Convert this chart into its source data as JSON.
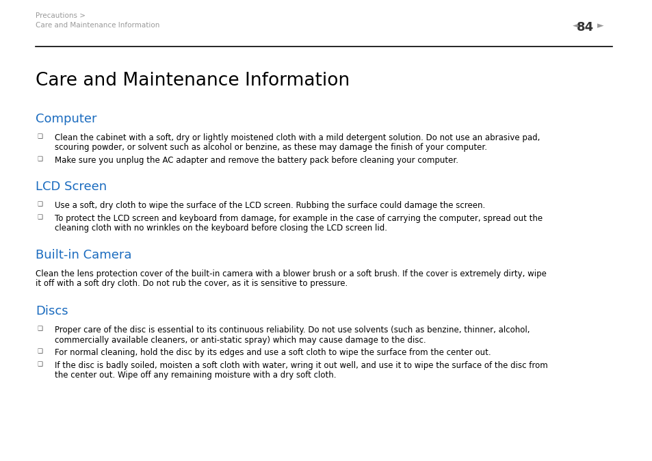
{
  "bg_color": "#ffffff",
  "header_breadcrumb1": "Precautions >",
  "header_breadcrumb2": "Care and Maintenance Information",
  "header_page_num": "84",
  "title": "Care and Maintenance Information",
  "section_color": "#1a6bbf",
  "text_color": "#000000",
  "header_color": "#999999",
  "page_num_color": "#333333",
  "arrow_color": "#999999",
  "sections": [
    {
      "heading": "Computer",
      "bullets": [
        [
          "Clean the cabinet with a soft, dry or lightly moistened cloth with a mild detergent solution. Do not use an abrasive pad,",
          "scouring powder, or solvent such as alcohol or benzine, as these may damage the finish of your computer."
        ],
        [
          "Make sure you unplug the AC adapter and remove the battery pack before cleaning your computer."
        ]
      ],
      "paragraph": null
    },
    {
      "heading": "LCD Screen",
      "bullets": [
        [
          "Use a soft, dry cloth to wipe the surface of the LCD screen. Rubbing the surface could damage the screen."
        ],
        [
          "To protect the LCD screen and keyboard from damage, for example in the case of carrying the computer, spread out the",
          "cleaning cloth with no wrinkles on the keyboard before closing the LCD screen lid."
        ]
      ],
      "paragraph": null
    },
    {
      "heading": "Built-in Camera",
      "bullets": [],
      "paragraph": [
        "Clean the lens protection cover of the built-in camera with a blower brush or a soft brush. If the cover is extremely dirty, wipe",
        "it off with a soft dry cloth. Do not rub the cover, as it is sensitive to pressure."
      ]
    },
    {
      "heading": "Discs",
      "bullets": [
        [
          "Proper care of the disc is essential to its continuous reliability. Do not use solvents (such as benzine, thinner, alcohol,",
          "commercially available cleaners, or anti-static spray) which may cause damage to the disc."
        ],
        [
          "For normal cleaning, hold the disc by its edges and use a soft cloth to wipe the surface from the center out."
        ],
        [
          "If the disc is badly soiled, moisten a soft cloth with water, wring it out well, and use it to wipe the surface of the disc from",
          "the center out. Wipe off any remaining moisture with a dry soft cloth."
        ]
      ],
      "paragraph": null
    }
  ],
  "header_fontsize": 7.5,
  "page_num_fontsize": 13,
  "title_fontsize": 19,
  "heading_fontsize": 13,
  "body_fontsize": 8.5
}
